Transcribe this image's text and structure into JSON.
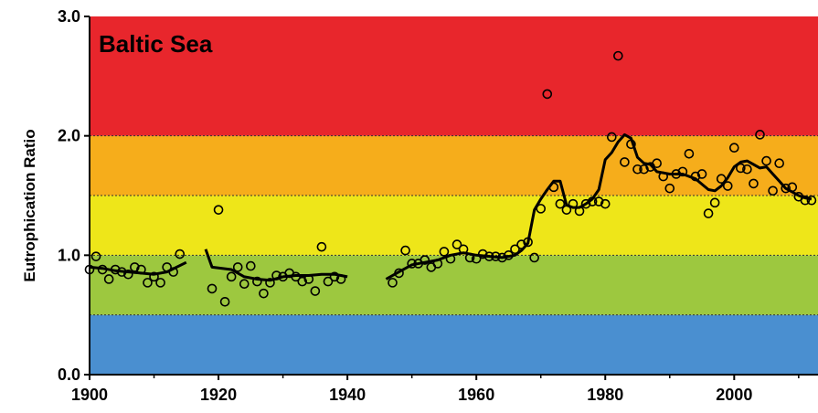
{
  "chart_data": {
    "type": "scatter",
    "title": "Baltic Sea",
    "xlabel": "",
    "ylabel": "Eutrophication Ratio",
    "xlim": [
      1900,
      2013
    ],
    "ylim": [
      0,
      3
    ],
    "x_ticks": [
      "1900",
      "1920",
      "1940",
      "1960",
      "1980",
      "2000"
    ],
    "y_ticks": [
      "0.0",
      "1.0",
      "2.0",
      "3.0"
    ],
    "grid": false,
    "legend": "none",
    "bands": [
      {
        "from": 0.0,
        "to": 0.5,
        "color": "#4a8fd0"
      },
      {
        "from": 0.5,
        "to": 1.0,
        "color": "#9dc83f"
      },
      {
        "from": 1.0,
        "to": 1.5,
        "color": "#eee619"
      },
      {
        "from": 1.5,
        "to": 2.0,
        "color": "#f6ad1b"
      },
      {
        "from": 2.0,
        "to": 3.0,
        "color": "#e8262c"
      }
    ],
    "band_boundaries_dashed": [
      0.5,
      1.0,
      1.5,
      2.0
    ],
    "series": [
      {
        "kind": "observations",
        "marker": "open-circle",
        "points": [
          [
            1900,
            0.88
          ],
          [
            1901,
            0.99
          ],
          [
            1902,
            0.88
          ],
          [
            1903,
            0.8
          ],
          [
            1904,
            0.88
          ],
          [
            1905,
            0.86
          ],
          [
            1906,
            0.84
          ],
          [
            1907,
            0.9
          ],
          [
            1908,
            0.88
          ],
          [
            1909,
            0.77
          ],
          [
            1910,
            0.82
          ],
          [
            1911,
            0.77
          ],
          [
            1912,
            0.9
          ],
          [
            1913,
            0.86
          ],
          [
            1914,
            1.01
          ],
          [
            1919,
            0.72
          ],
          [
            1920,
            1.38
          ],
          [
            1921,
            0.61
          ],
          [
            1922,
            0.82
          ],
          [
            1923,
            0.9
          ],
          [
            1924,
            0.76
          ],
          [
            1925,
            0.91
          ],
          [
            1926,
            0.78
          ],
          [
            1927,
            0.68
          ],
          [
            1928,
            0.77
          ],
          [
            1929,
            0.83
          ],
          [
            1930,
            0.82
          ],
          [
            1931,
            0.85
          ],
          [
            1932,
            0.82
          ],
          [
            1933,
            0.78
          ],
          [
            1934,
            0.8
          ],
          [
            1935,
            0.7
          ],
          [
            1936,
            1.07
          ],
          [
            1937,
            0.78
          ],
          [
            1938,
            0.82
          ],
          [
            1939,
            0.8
          ],
          [
            1947,
            0.77
          ],
          [
            1948,
            0.85
          ],
          [
            1949,
            1.04
          ],
          [
            1950,
            0.93
          ],
          [
            1951,
            0.93
          ],
          [
            1952,
            0.96
          ],
          [
            1953,
            0.9
          ],
          [
            1954,
            0.93
          ],
          [
            1955,
            1.03
          ],
          [
            1956,
            0.97
          ],
          [
            1957,
            1.09
          ],
          [
            1958,
            1.05
          ],
          [
            1959,
            0.98
          ],
          [
            1960,
            0.97
          ],
          [
            1961,
            1.01
          ],
          [
            1962,
            0.99
          ],
          [
            1963,
            0.99
          ],
          [
            1964,
            0.98
          ],
          [
            1965,
            1.0
          ],
          [
            1966,
            1.05
          ],
          [
            1967,
            1.09
          ],
          [
            1968,
            1.11
          ],
          [
            1969,
            0.98
          ],
          [
            1970,
            1.39
          ],
          [
            1971,
            2.35
          ],
          [
            1972,
            1.57
          ],
          [
            1973,
            1.43
          ],
          [
            1974,
            1.38
          ],
          [
            1975,
            1.43
          ],
          [
            1976,
            1.37
          ],
          [
            1977,
            1.43
          ],
          [
            1978,
            1.45
          ],
          [
            1979,
            1.45
          ],
          [
            1980,
            1.43
          ],
          [
            1981,
            1.99
          ],
          [
            1982,
            2.67
          ],
          [
            1983,
            1.78
          ],
          [
            1984,
            1.93
          ],
          [
            1985,
            1.72
          ],
          [
            1986,
            1.72
          ],
          [
            1987,
            1.74
          ],
          [
            1988,
            1.77
          ],
          [
            1989,
            1.66
          ],
          [
            1990,
            1.56
          ],
          [
            1991,
            1.68
          ],
          [
            1992,
            1.7
          ],
          [
            1993,
            1.85
          ],
          [
            1994,
            1.66
          ],
          [
            1995,
            1.68
          ],
          [
            1996,
            1.35
          ],
          [
            1997,
            1.44
          ],
          [
            1998,
            1.64
          ],
          [
            1999,
            1.58
          ],
          [
            2000,
            1.9
          ],
          [
            2001,
            1.73
          ],
          [
            2002,
            1.72
          ],
          [
            2003,
            1.6
          ],
          [
            2004,
            2.01
          ],
          [
            2005,
            1.79
          ],
          [
            2006,
            1.54
          ],
          [
            2007,
            1.77
          ],
          [
            2008,
            1.56
          ],
          [
            2009,
            1.57
          ],
          [
            2010,
            1.49
          ],
          [
            2011,
            1.46
          ],
          [
            2012,
            1.46
          ]
        ]
      },
      {
        "kind": "moving-average",
        "segments": [
          [
            [
              1900,
              0.9
            ],
            [
              1902,
              0.89
            ],
            [
              1904,
              0.87
            ],
            [
              1906,
              0.86
            ],
            [
              1908,
              0.85
            ],
            [
              1910,
              0.84
            ],
            [
              1912,
              0.86
            ],
            [
              1915,
              0.94
            ]
          ],
          [
            [
              1918,
              1.05
            ],
            [
              1919,
              0.9
            ],
            [
              1922,
              0.88
            ],
            [
              1924,
              0.82
            ],
            [
              1926,
              0.8
            ],
            [
              1928,
              0.79
            ],
            [
              1930,
              0.82
            ],
            [
              1932,
              0.83
            ],
            [
              1934,
              0.83
            ],
            [
              1936,
              0.84
            ],
            [
              1938,
              0.84
            ],
            [
              1939,
              0.83
            ],
            [
              1940,
              0.82
            ]
          ],
          [
            [
              1946,
              0.8
            ],
            [
              1948,
              0.86
            ],
            [
              1950,
              0.92
            ],
            [
              1952,
              0.94
            ],
            [
              1954,
              0.96
            ],
            [
              1956,
              1.0
            ],
            [
              1958,
              1.02
            ],
            [
              1960,
              1.0
            ],
            [
              1962,
              0.99
            ],
            [
              1964,
              0.98
            ],
            [
              1966,
              1.0
            ],
            [
              1967,
              1.04
            ],
            [
              1968,
              1.1
            ],
            [
              1969,
              1.38
            ],
            [
              1970,
              1.47
            ],
            [
              1971,
              1.55
            ],
            [
              1972,
              1.62
            ],
            [
              1973,
              1.62
            ],
            [
              1974,
              1.42
            ],
            [
              1975,
              1.4
            ],
            [
              1976,
              1.4
            ],
            [
              1977,
              1.43
            ],
            [
              1978,
              1.47
            ],
            [
              1979,
              1.55
            ],
            [
              1980,
              1.8
            ],
            [
              1981,
              1.86
            ],
            [
              1982,
              1.95
            ],
            [
              1983,
              2.01
            ],
            [
              1984,
              1.98
            ],
            [
              1985,
              1.82
            ],
            [
              1986,
              1.77
            ],
            [
              1987,
              1.76
            ],
            [
              1988,
              1.7
            ],
            [
              1989,
              1.69
            ],
            [
              1990,
              1.68
            ],
            [
              1992,
              1.68
            ],
            [
              1994,
              1.64
            ],
            [
              1996,
              1.55
            ],
            [
              1997,
              1.54
            ],
            [
              1998,
              1.58
            ],
            [
              1999,
              1.65
            ],
            [
              2000,
              1.74
            ],
            [
              2001,
              1.78
            ],
            [
              2002,
              1.79
            ],
            [
              2003,
              1.76
            ],
            [
              2004,
              1.73
            ],
            [
              2005,
              1.74
            ],
            [
              2006,
              1.68
            ],
            [
              2007,
              1.62
            ],
            [
              2008,
              1.56
            ],
            [
              2009,
              1.53
            ],
            [
              2010,
              1.5
            ],
            [
              2011,
              1.48
            ],
            [
              2012,
              1.47
            ]
          ]
        ]
      }
    ]
  }
}
